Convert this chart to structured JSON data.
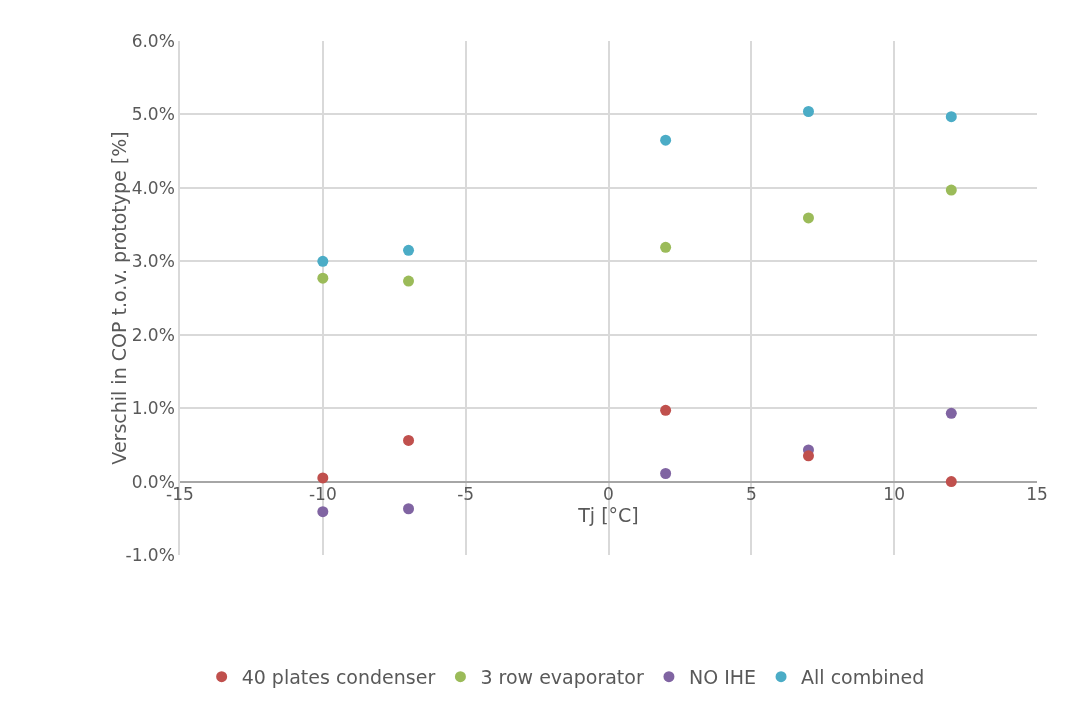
{
  "chart_data": {
    "type": "scatter",
    "xlabel": "Tj [°C]",
    "ylabel": "Verschil in COP t.o.v. prototype [%]",
    "x": [
      -10,
      -7,
      2,
      7,
      12
    ],
    "series": [
      {
        "name": "40 plates condenser",
        "color": "#c0504d",
        "values": [
          0.05,
          0.56,
          0.97,
          0.35,
          0.0
        ]
      },
      {
        "name": "3 row evaporator",
        "color": "#9bbb59",
        "values": [
          2.77,
          2.73,
          3.19,
          3.59,
          3.97
        ]
      },
      {
        "name": "NO IHE",
        "color": "#8064a2",
        "values": [
          -0.41,
          -0.37,
          0.11,
          0.43,
          0.93
        ]
      },
      {
        "name": "All combined",
        "color": "#4bacc6",
        "values": [
          3.0,
          3.15,
          4.65,
          5.04,
          4.97
        ]
      }
    ],
    "xlim": [
      -15,
      15
    ],
    "xticks": [
      -15,
      -10,
      -5,
      0,
      5,
      10,
      15
    ],
    "ylim": [
      -1,
      6
    ],
    "yticks": [
      {
        "value": -1,
        "label": "-1.0%"
      },
      {
        "value": 0,
        "label": "0.0%"
      },
      {
        "value": 1,
        "label": "1.0%"
      },
      {
        "value": 2,
        "label": "2.0%"
      },
      {
        "value": 3,
        "label": "3.0%"
      },
      {
        "value": 4,
        "label": "4.0%"
      },
      {
        "value": 5,
        "label": "5.0%"
      },
      {
        "value": 6,
        "label": "6.0%"
      }
    ],
    "grid": true,
    "legend": "bottom",
    "marker": "circle"
  }
}
